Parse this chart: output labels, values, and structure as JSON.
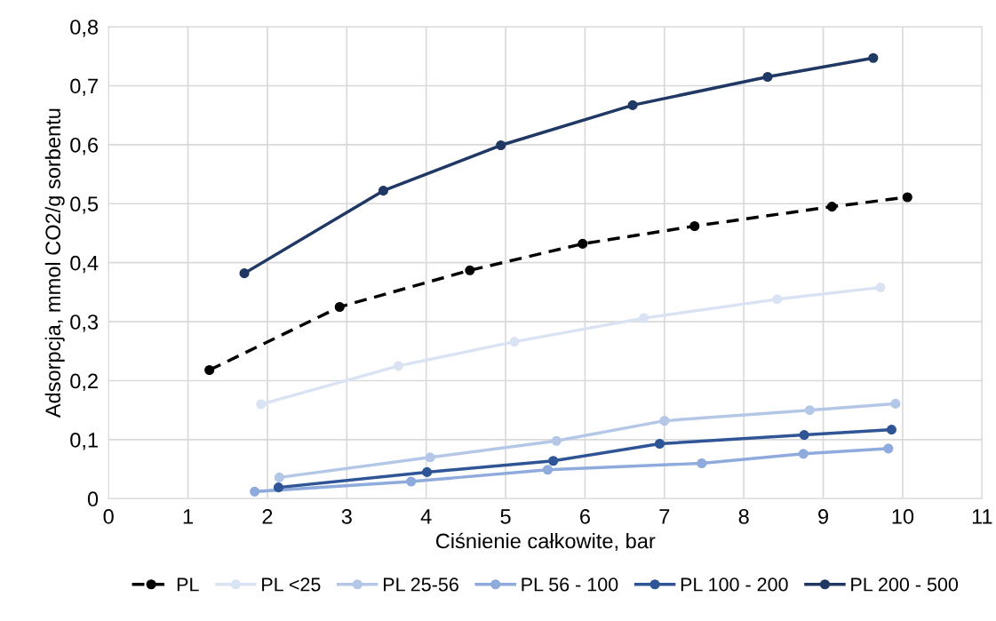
{
  "chart_data": {
    "type": "line",
    "xlabel": "Ciśnienie całkowite, bar",
    "ylabel": "Adsorpcja, mmol CO2/g sorbentu",
    "xlim": [
      0,
      11
    ],
    "xticks": [
      0,
      1,
      2,
      3,
      4,
      5,
      6,
      7,
      8,
      9,
      10,
      11
    ],
    "ylim": [
      0,
      0.8
    ],
    "yticks": [
      0,
      {
        "value": 0.1,
        "label": "0,1"
      },
      {
        "value": 0.2,
        "label": "0,2"
      },
      {
        "value": 0.3,
        "label": "0,3"
      },
      {
        "value": 0.4,
        "label": "0,4"
      },
      {
        "value": 0.5,
        "label": "0,5"
      },
      {
        "value": 0.6,
        "label": "0,6"
      },
      {
        "value": 0.7,
        "label": "0,7"
      },
      {
        "value": 0.8,
        "label": "0,8"
      }
    ],
    "grid": true,
    "legend": "bottom",
    "marker": "circle",
    "series": [
      {
        "name": "PL",
        "color": "#000000",
        "line_style": "dashed",
        "x": [
          1.27,
          2.91,
          4.55,
          5.97,
          7.38,
          9.11,
          10.06
        ],
        "values": [
          0.218,
          0.325,
          0.387,
          0.432,
          0.462,
          0.495,
          0.511
        ]
      },
      {
        "name": "PL <25",
        "color": "#dae3f3",
        "x": [
          1.92,
          3.65,
          5.11,
          6.74,
          8.42,
          9.72
        ],
        "values": [
          0.16,
          0.225,
          0.266,
          0.306,
          0.338,
          0.358
        ]
      },
      {
        "name": "PL 25-56",
        "color": "#b4c7e7",
        "x": [
          2.15,
          4.05,
          5.64,
          7.0,
          8.83,
          9.91
        ],
        "values": [
          0.036,
          0.07,
          0.098,
          0.132,
          0.15,
          0.161
        ]
      },
      {
        "name": "PL 56 - 100",
        "color": "#8faadc",
        "x": [
          1.84,
          3.81,
          5.53,
          7.47,
          8.75,
          9.82
        ],
        "values": [
          0.012,
          0.029,
          0.049,
          0.06,
          0.076,
          0.085
        ]
      },
      {
        "name": "PL 100 - 200",
        "color": "#2f5597",
        "x": [
          2.14,
          4.01,
          5.6,
          6.94,
          8.76,
          9.86
        ],
        "values": [
          0.019,
          0.045,
          0.064,
          0.093,
          0.108,
          0.117
        ]
      },
      {
        "name": "PL 200 - 500",
        "color": "#203864",
        "x": [
          1.71,
          3.46,
          4.94,
          6.6,
          8.3,
          9.63
        ],
        "values": [
          0.382,
          0.522,
          0.599,
          0.667,
          0.715,
          0.747
        ]
      }
    ]
  }
}
